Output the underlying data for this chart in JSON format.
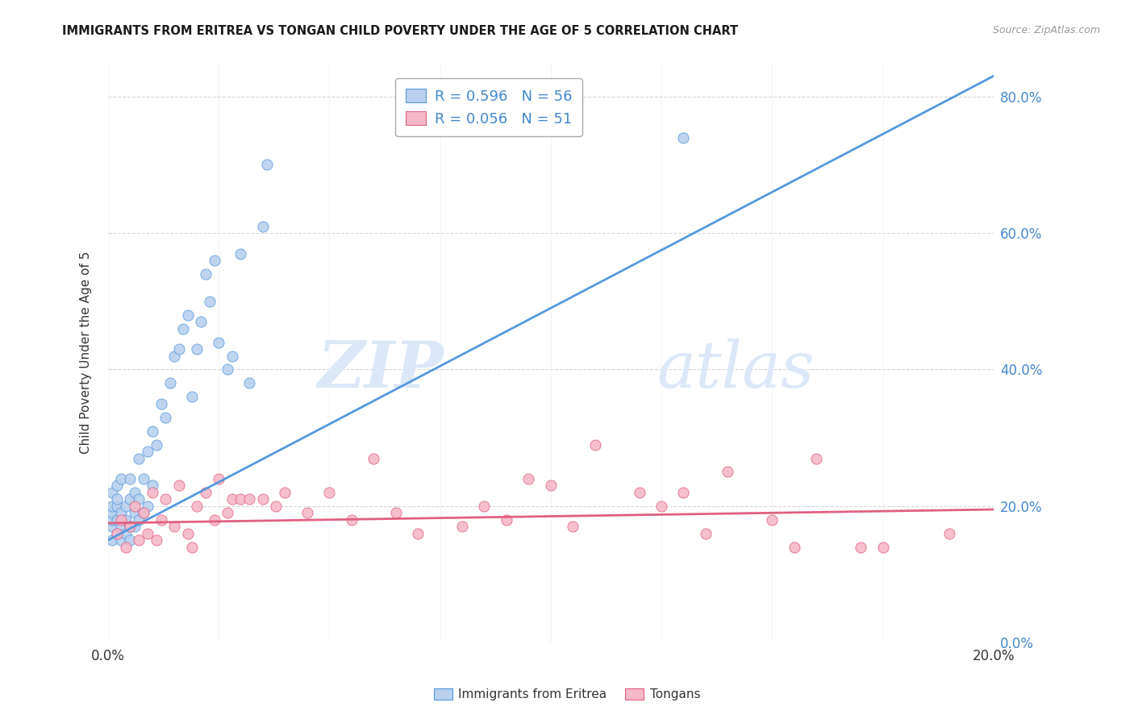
{
  "title": "IMMIGRANTS FROM ERITREA VS TONGAN CHILD POVERTY UNDER THE AGE OF 5 CORRELATION CHART",
  "source": "Source: ZipAtlas.com",
  "ylabel": "Child Poverty Under the Age of 5",
  "legend_eritrea": "R = 0.596   N = 56",
  "legend_tongan": "R = 0.056   N = 51",
  "legend_label_eritrea": "Immigrants from Eritrea",
  "legend_label_tongan": "Tongans",
  "xlim": [
    0.0,
    0.2
  ],
  "ylim": [
    0.0,
    0.85
  ],
  "yticks": [
    0.0,
    0.2,
    0.4,
    0.6,
    0.8
  ],
  "background_color": "#ffffff",
  "grid_color": "#cccccc",
  "eritrea_color": "#b8d0ee",
  "tongan_color": "#f5b8c8",
  "eritrea_line_color": "#5599dd",
  "tongan_line_color": "#e06080",
  "watermark_zip": "ZIP",
  "watermark_atlas": "atlas",
  "watermark_color": "#dce8f8",
  "eritrea_scatter_x": [
    0.001,
    0.001,
    0.001,
    0.001,
    0.001,
    0.001,
    0.002,
    0.002,
    0.002,
    0.002,
    0.002,
    0.003,
    0.003,
    0.003,
    0.003,
    0.004,
    0.004,
    0.004,
    0.005,
    0.005,
    0.005,
    0.005,
    0.006,
    0.006,
    0.006,
    0.007,
    0.007,
    0.007,
    0.008,
    0.008,
    0.009,
    0.009,
    0.01,
    0.01,
    0.011,
    0.012,
    0.013,
    0.014,
    0.015,
    0.016,
    0.017,
    0.018,
    0.019,
    0.02,
    0.021,
    0.022,
    0.023,
    0.024,
    0.025,
    0.027,
    0.028,
    0.03,
    0.032,
    0.035,
    0.036,
    0.13
  ],
  "eritrea_scatter_y": [
    0.15,
    0.17,
    0.18,
    0.19,
    0.2,
    0.22,
    0.16,
    0.18,
    0.2,
    0.21,
    0.23,
    0.15,
    0.17,
    0.19,
    0.24,
    0.16,
    0.18,
    0.2,
    0.15,
    0.17,
    0.21,
    0.24,
    0.17,
    0.19,
    0.22,
    0.18,
    0.21,
    0.27,
    0.19,
    0.24,
    0.2,
    0.28,
    0.23,
    0.31,
    0.29,
    0.35,
    0.33,
    0.38,
    0.42,
    0.43,
    0.46,
    0.48,
    0.36,
    0.43,
    0.47,
    0.54,
    0.5,
    0.56,
    0.44,
    0.4,
    0.42,
    0.57,
    0.38,
    0.61,
    0.7,
    0.74
  ],
  "tongan_scatter_x": [
    0.002,
    0.003,
    0.004,
    0.005,
    0.006,
    0.007,
    0.008,
    0.009,
    0.01,
    0.011,
    0.012,
    0.013,
    0.015,
    0.016,
    0.018,
    0.019,
    0.02,
    0.022,
    0.024,
    0.025,
    0.027,
    0.028,
    0.03,
    0.032,
    0.035,
    0.038,
    0.04,
    0.045,
    0.05,
    0.055,
    0.06,
    0.065,
    0.07,
    0.08,
    0.085,
    0.09,
    0.095,
    0.1,
    0.105,
    0.11,
    0.12,
    0.125,
    0.13,
    0.135,
    0.14,
    0.15,
    0.155,
    0.16,
    0.17,
    0.175,
    0.19
  ],
  "tongan_scatter_y": [
    0.16,
    0.18,
    0.14,
    0.17,
    0.2,
    0.15,
    0.19,
    0.16,
    0.22,
    0.15,
    0.18,
    0.21,
    0.17,
    0.23,
    0.16,
    0.14,
    0.2,
    0.22,
    0.18,
    0.24,
    0.19,
    0.21,
    0.21,
    0.21,
    0.21,
    0.2,
    0.22,
    0.19,
    0.22,
    0.18,
    0.27,
    0.19,
    0.16,
    0.17,
    0.2,
    0.18,
    0.24,
    0.23,
    0.17,
    0.29,
    0.22,
    0.2,
    0.22,
    0.16,
    0.25,
    0.18,
    0.14,
    0.27,
    0.14,
    0.14,
    0.16
  ],
  "eritrea_regr": [
    0.15,
    0.83
  ],
  "tongan_regr": [
    0.175,
    0.195
  ]
}
